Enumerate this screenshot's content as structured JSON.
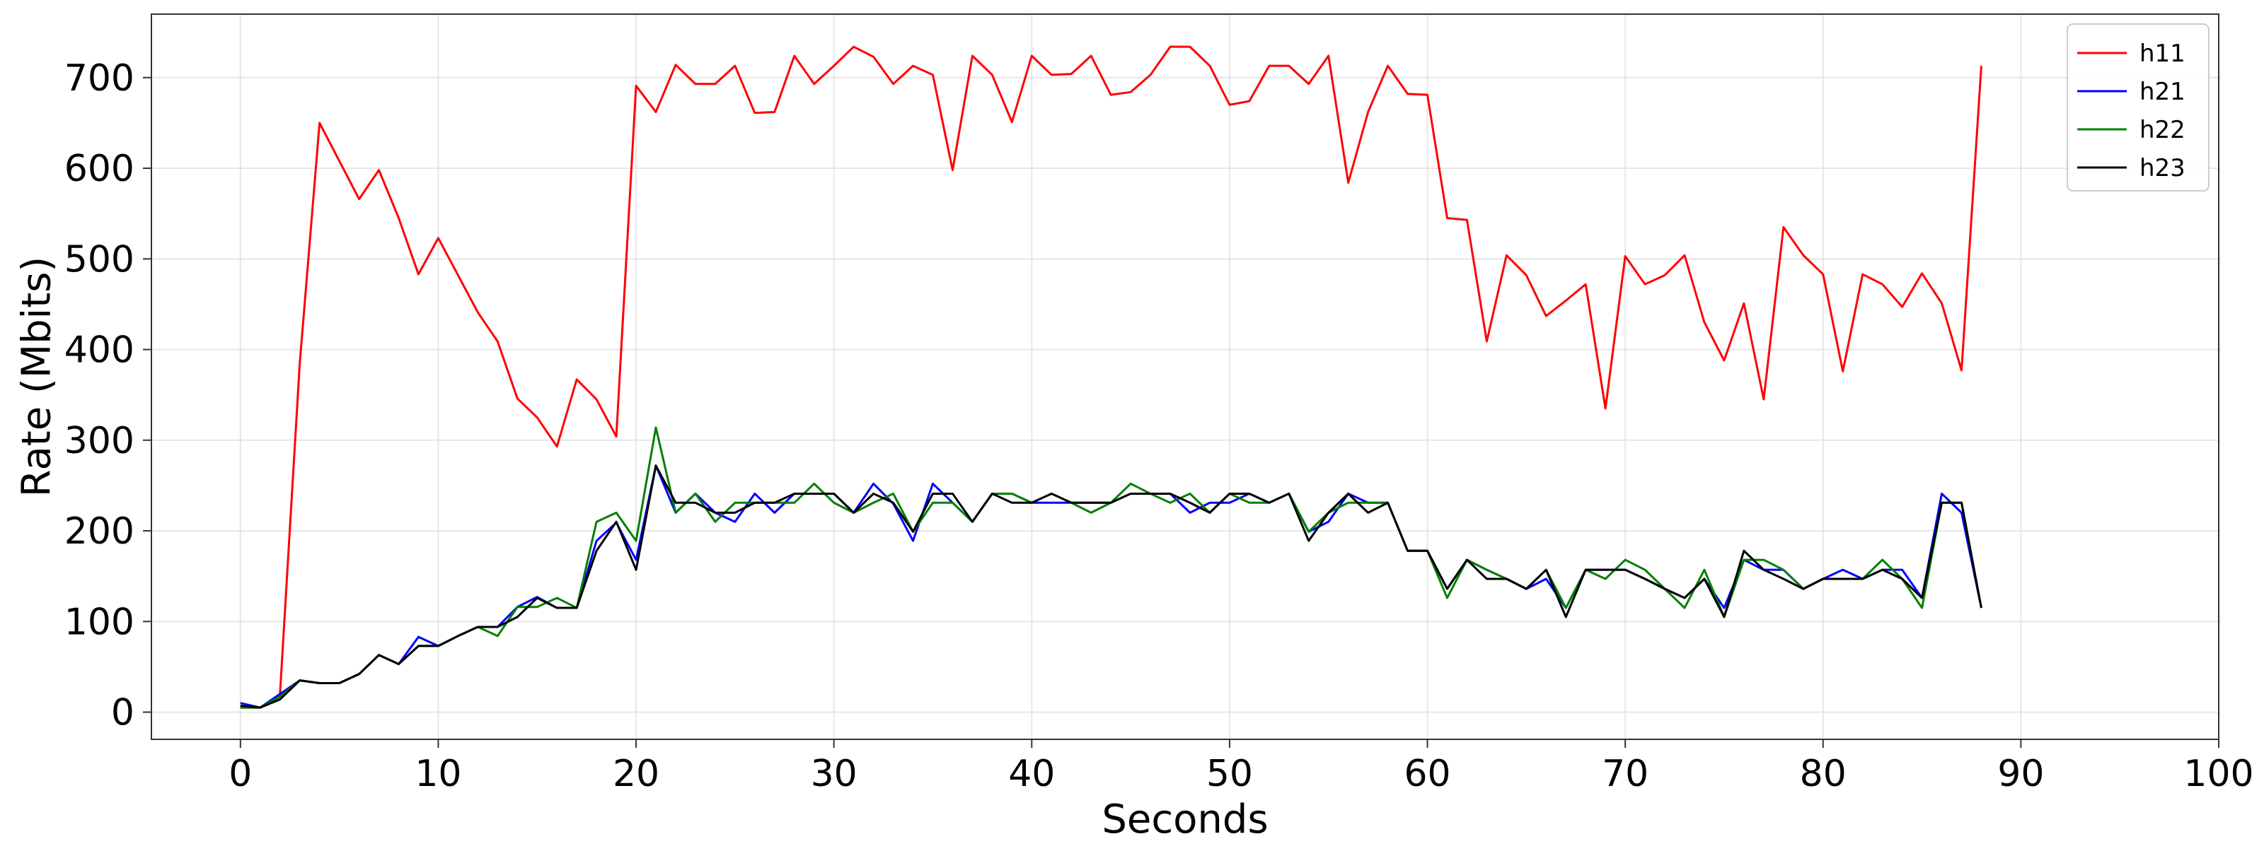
{
  "chart_data": {
    "type": "line",
    "title": "",
    "xlabel": "Seconds",
    "ylabel": "Rate (Mbits)",
    "xlim": [
      -4.5,
      100
    ],
    "ylim": [
      -30,
      770
    ],
    "x_ticks": [
      0,
      10,
      20,
      30,
      40,
      50,
      60,
      70,
      80,
      90,
      100
    ],
    "y_ticks": [
      0,
      100,
      200,
      300,
      400,
      500,
      600,
      700
    ],
    "grid": true,
    "legend_position": "top-right",
    "x": [
      0,
      1,
      2,
      3,
      4,
      5,
      6,
      7,
      8,
      9,
      10,
      11,
      12,
      13,
      14,
      15,
      16,
      17,
      18,
      19,
      20,
      21,
      22,
      23,
      24,
      25,
      26,
      27,
      28,
      29,
      30,
      31,
      32,
      33,
      34,
      35,
      36,
      37,
      38,
      39,
      40,
      41,
      42,
      43,
      44,
      45,
      46,
      47,
      48,
      49,
      50,
      51,
      52,
      53,
      54,
      55,
      56,
      57,
      58,
      59,
      60,
      61,
      62,
      63,
      64,
      65,
      66,
      67,
      68,
      69,
      70,
      71,
      72,
      73,
      74,
      75,
      76,
      77,
      78,
      79,
      80,
      81,
      82,
      83,
      84,
      85,
      86,
      87,
      88
    ],
    "series": [
      {
        "name": "h11",
        "color": "#ff0000",
        "values": [
          5,
          5,
          20,
          385,
          650,
          608,
          566,
          598,
          545,
          483,
          523,
          482,
          441,
          409,
          346,
          325,
          293,
          367,
          345,
          304,
          691,
          662,
          714,
          693,
          693,
          713,
          661,
          662,
          724,
          693,
          713,
          734,
          723,
          693,
          713,
          703,
          598,
          724,
          703,
          651,
          724,
          703,
          704,
          724,
          681,
          684,
          703,
          734,
          734,
          713,
          670,
          674,
          713,
          713,
          693,
          724,
          584,
          662,
          713,
          682,
          681,
          545,
          543,
          409,
          504,
          482,
          437,
          454,
          472,
          335,
          503,
          472,
          482,
          504,
          430,
          388,
          451,
          345,
          535,
          504,
          483,
          376,
          483,
          472,
          447,
          484,
          451,
          377,
          713
        ]
      },
      {
        "name": "h21",
        "color": "#0000ff",
        "values": [
          10,
          5,
          20,
          35,
          32,
          32,
          42,
          63,
          53,
          83,
          73,
          84,
          94,
          94,
          116,
          127,
          115,
          115,
          189,
          209,
          168,
          272,
          220,
          241,
          220,
          210,
          241,
          220,
          241,
          241,
          241,
          220,
          252,
          230,
          189,
          252,
          231,
          210,
          241,
          241,
          231,
          231,
          231,
          231,
          231,
          241,
          241,
          241,
          220,
          231,
          231,
          241,
          231,
          241,
          199,
          210,
          241,
          231,
          231,
          178,
          178,
          136,
          168,
          157,
          147,
          136,
          147,
          115,
          157,
          157,
          157,
          147,
          136,
          126,
          147,
          115,
          168,
          157,
          157,
          136,
          147,
          157,
          147,
          157,
          157,
          126,
          241,
          220,
          115
        ]
      },
      {
        "name": "h22",
        "color": "#008000",
        "values": [
          5,
          5,
          17,
          35,
          32,
          32,
          42,
          63,
          53,
          73,
          73,
          84,
          94,
          84,
          116,
          116,
          126,
          115,
          210,
          220,
          189,
          314,
          220,
          241,
          210,
          231,
          231,
          231,
          231,
          252,
          231,
          220,
          231,
          241,
          199,
          231,
          231,
          210,
          241,
          241,
          231,
          241,
          231,
          220,
          231,
          252,
          241,
          231,
          241,
          220,
          241,
          231,
          231,
          241,
          199,
          220,
          231,
          231,
          231,
          178,
          178,
          126,
          168,
          157,
          147,
          136,
          157,
          115,
          157,
          147,
          168,
          157,
          136,
          115,
          157,
          105,
          168,
          168,
          157,
          136,
          147,
          147,
          147,
          168,
          147,
          115,
          231,
          231,
          115
        ]
      },
      {
        "name": "h23",
        "color": "#000000",
        "values": [
          7,
          5,
          14,
          35,
          32,
          32,
          42,
          63,
          53,
          73,
          73,
          84,
          94,
          94,
          105,
          126,
          115,
          115,
          178,
          210,
          157,
          272,
          231,
          231,
          220,
          220,
          231,
          231,
          241,
          241,
          241,
          220,
          241,
          231,
          199,
          241,
          241,
          210,
          241,
          231,
          231,
          241,
          231,
          231,
          231,
          241,
          241,
          241,
          231,
          220,
          241,
          241,
          231,
          241,
          189,
          220,
          241,
          220,
          231,
          178,
          178,
          136,
          168,
          147,
          147,
          136,
          157,
          105,
          157,
          157,
          157,
          147,
          136,
          126,
          147,
          105,
          178,
          157,
          147,
          136,
          147,
          147,
          147,
          157,
          147,
          126,
          231,
          231,
          115
        ]
      }
    ]
  }
}
